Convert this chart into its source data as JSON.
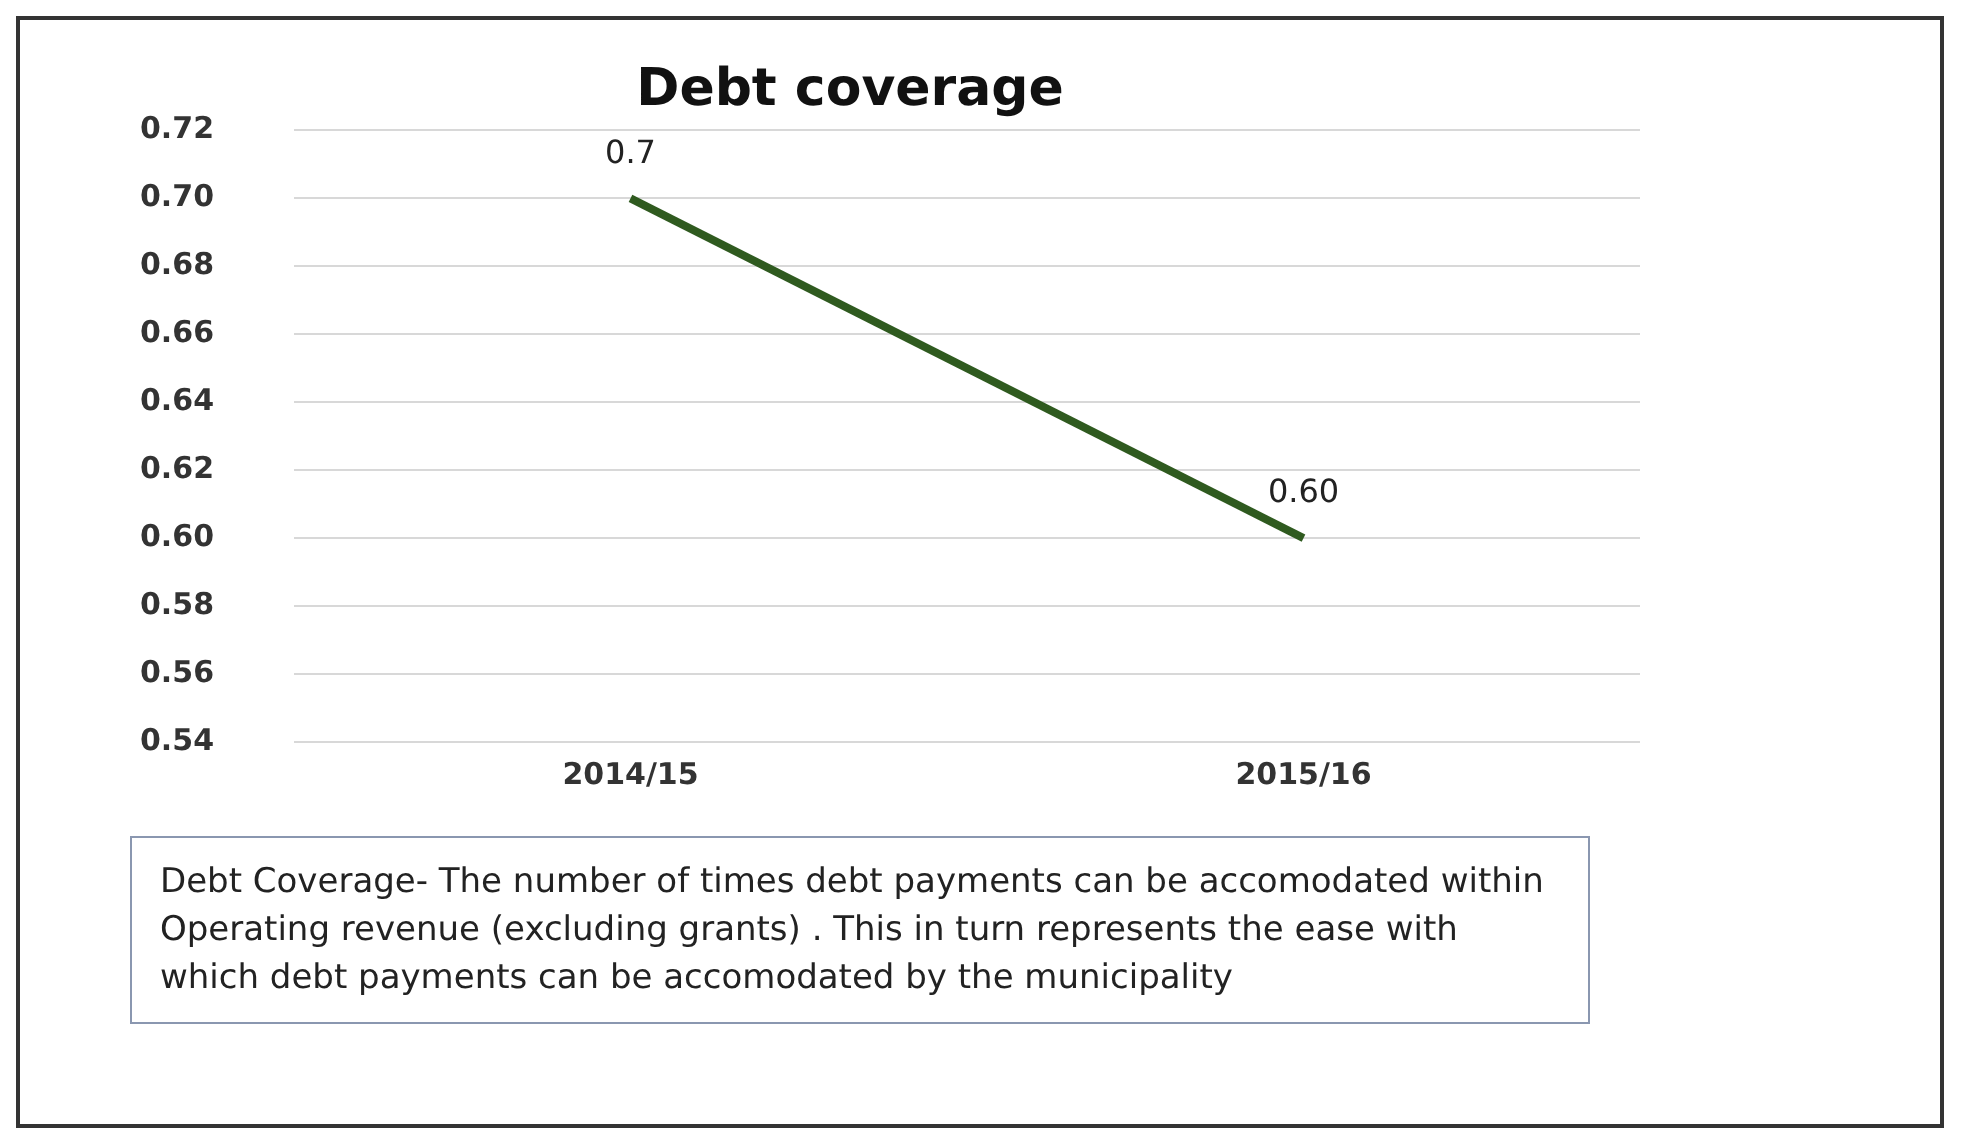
{
  "chart_data": {
    "type": "line",
    "title": "Debt coverage",
    "categories": [
      "2014/15",
      "2015/16"
    ],
    "series": [
      {
        "color": "#2f5a1f",
        "values": [
          0.7,
          0.6
        ],
        "value_labels": [
          "0.7",
          "0.60"
        ]
      }
    ],
    "ylim": [
      0.54,
      0.72
    ],
    "yticks": [
      0.54,
      0.56,
      0.58,
      {
        "value": 0.6,
        "label": "0.60"
      },
      0.62,
      0.64,
      0.66,
      0.68,
      {
        "value": 0.7,
        "label": "0.70"
      },
      0.72
    ],
    "grid": "y",
    "marker": "none",
    "line_style": "solid",
    "legend": false,
    "annotations": [
      "Debt Coverage-  The number of times debt payments can be accomodated within Operating revenue (excluding grants) .  This in turn represents the ease with which debt payments can be accomodated by the municipality"
    ]
  }
}
